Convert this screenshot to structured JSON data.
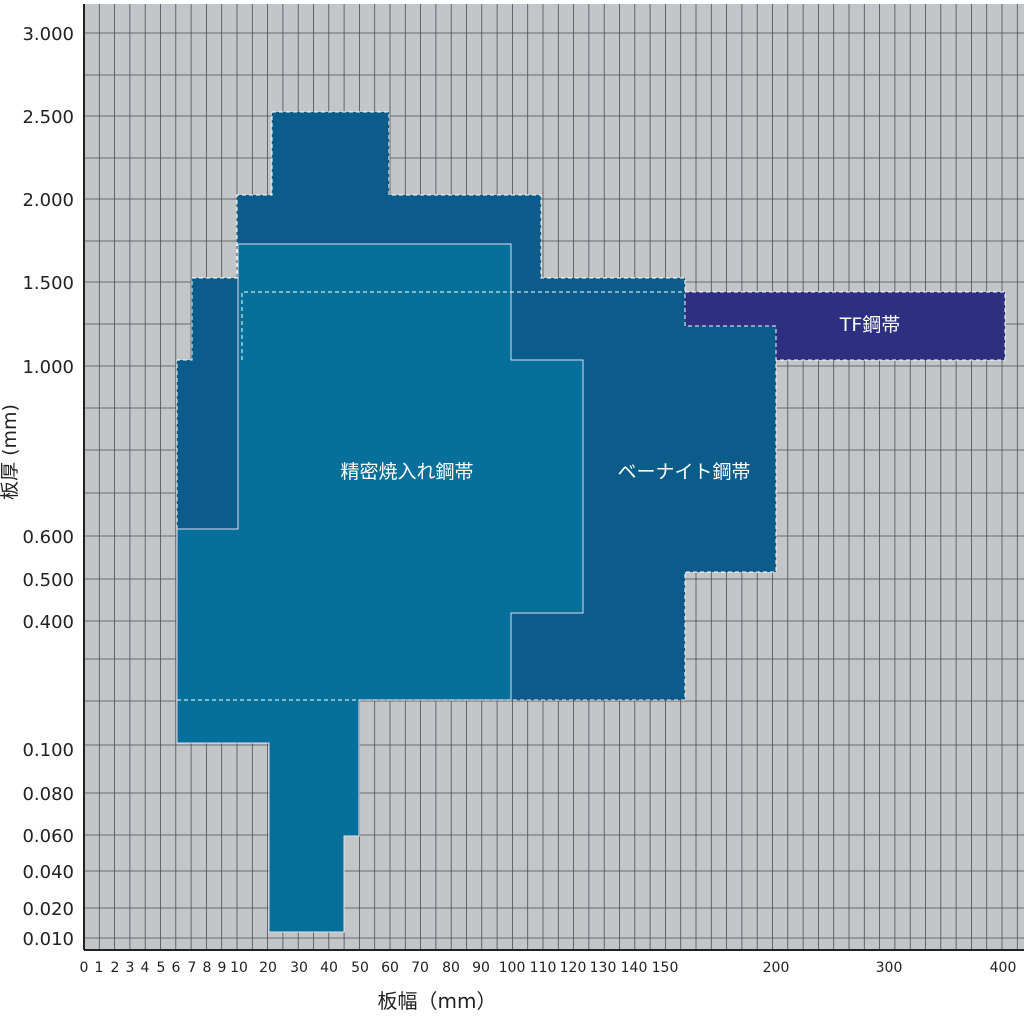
{
  "x_axis": {
    "title": "板幅（mm）",
    "ticks": [
      "0",
      "1",
      "2",
      "3",
      "4",
      "5",
      "6",
      "7",
      "8",
      "9",
      "10",
      "20",
      "30",
      "40",
      "50",
      "60",
      "70",
      "80",
      "90",
      "100",
      "110",
      "120",
      "130",
      "140",
      "150",
      "200",
      "300",
      "400"
    ]
  },
  "y_axis": {
    "title": "板厚 (mm)",
    "ticks": [
      "3.000",
      "2.500",
      "2.000",
      "1.500",
      "1.000",
      "0.600",
      "0.500",
      "0.400",
      "0.100",
      "0.080",
      "0.060",
      "0.040",
      "0.020",
      "0.010"
    ]
  },
  "regions": [
    {
      "label": "精密焼入れ鋼帯"
    },
    {
      "label": "ベーナイト鋼帯"
    },
    {
      "label": "TF鋼帯"
    }
  ]
}
